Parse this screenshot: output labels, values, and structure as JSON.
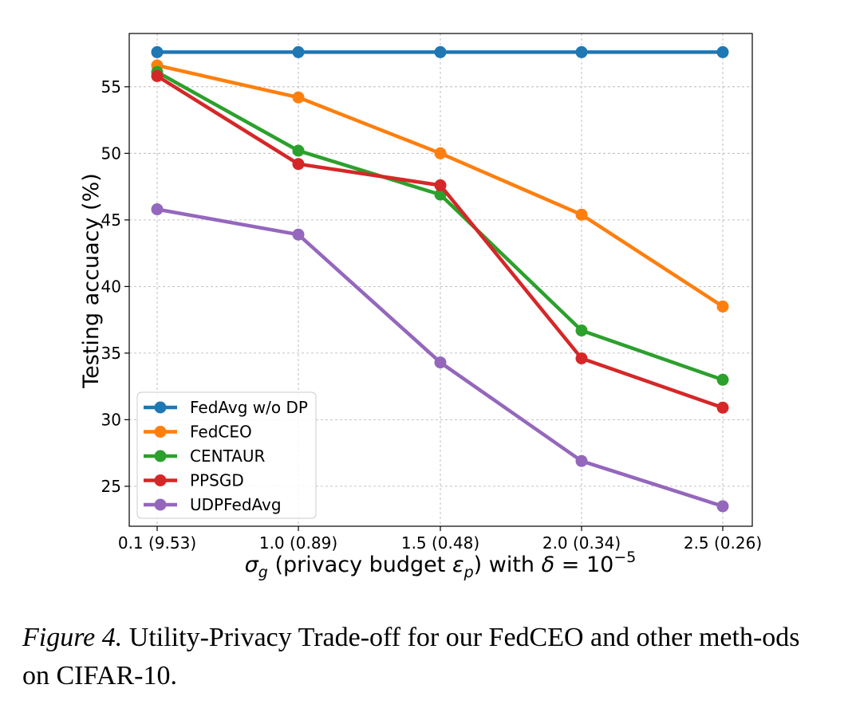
{
  "chart_data": {
    "type": "line",
    "x_categories": [
      "0.1 (9.53)",
      "1.0 (0.89)",
      "1.5 (0.48)",
      "2.0 (0.34)",
      "2.5 (0.26)"
    ],
    "ylim": [
      22,
      59
    ],
    "yticks": [
      25,
      30,
      35,
      40,
      45,
      50,
      55
    ],
    "ylabel": "Testing accuacy (%)",
    "xlabel": {
      "sigma": "σ",
      "sigma_sub": "g",
      "text1": " (privacy budget ",
      "eps": "ε",
      "eps_sub": "p",
      "text2": ") with ",
      "delta": "δ",
      "eq": " = 10",
      "exp": "−5"
    },
    "grid": true,
    "legend_position": "lower-left",
    "series": [
      {
        "name": "FedAvg w/o DP",
        "color": "#1f77b4",
        "values": [
          57.6,
          57.6,
          57.6,
          57.6,
          57.6
        ]
      },
      {
        "name": "FedCEO",
        "color": "#ff7f0e",
        "values": [
          56.6,
          54.2,
          50.0,
          45.4,
          38.5
        ]
      },
      {
        "name": "CENTAUR",
        "color": "#2ca02c",
        "values": [
          56.1,
          50.2,
          46.9,
          36.7,
          33.0
        ]
      },
      {
        "name": "PPSGD",
        "color": "#d62728",
        "values": [
          55.8,
          49.2,
          47.6,
          34.6,
          30.9
        ]
      },
      {
        "name": "UDPFedAvg",
        "color": "#9467bd",
        "values": [
          45.8,
          43.9,
          34.3,
          26.9,
          23.5
        ]
      }
    ]
  },
  "caption": {
    "label": "Figure 4.",
    "text": " Utility-Privacy Trade-off for our FedCEO and other meth-ods on CIFAR-10."
  }
}
